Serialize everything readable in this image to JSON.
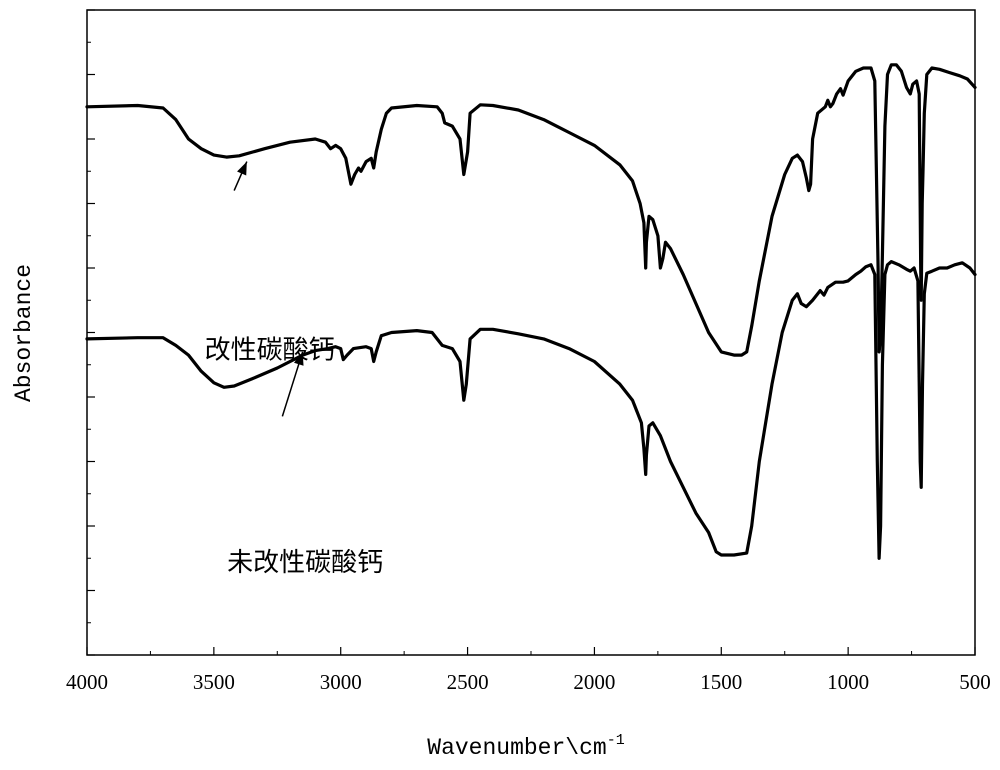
{
  "chart_data": {
    "type": "line",
    "xlabel": "Wavenumber\\cm",
    "xlabel_superscript": "-1",
    "ylabel": "Absorbance",
    "xlim": [
      4000,
      500
    ],
    "x_reversed": true,
    "x_ticks": [
      4000,
      3500,
      3000,
      2500,
      2000,
      1500,
      1000,
      500
    ],
    "y_tick_labels_shown": false,
    "ylim": [
      0,
      1
    ],
    "grid": false,
    "legend": "none",
    "line_color": "#000000",
    "series": [
      {
        "label": "改性碳酸钙",
        "points": [
          [
            4000,
            0.85
          ],
          [
            3800,
            0.852
          ],
          [
            3700,
            0.848
          ],
          [
            3650,
            0.83
          ],
          [
            3600,
            0.8
          ],
          [
            3550,
            0.785
          ],
          [
            3500,
            0.775
          ],
          [
            3450,
            0.772
          ],
          [
            3400,
            0.774
          ],
          [
            3300,
            0.785
          ],
          [
            3200,
            0.795
          ],
          [
            3100,
            0.8
          ],
          [
            3060,
            0.795
          ],
          [
            3040,
            0.785
          ],
          [
            3020,
            0.79
          ],
          [
            3000,
            0.785
          ],
          [
            2980,
            0.77
          ],
          [
            2960,
            0.73
          ],
          [
            2945,
            0.745
          ],
          [
            2930,
            0.755
          ],
          [
            2920,
            0.75
          ],
          [
            2900,
            0.765
          ],
          [
            2880,
            0.77
          ],
          [
            2870,
            0.755
          ],
          [
            2860,
            0.78
          ],
          [
            2840,
            0.815
          ],
          [
            2820,
            0.84
          ],
          [
            2800,
            0.848
          ],
          [
            2700,
            0.852
          ],
          [
            2620,
            0.85
          ],
          [
            2600,
            0.84
          ],
          [
            2590,
            0.825
          ],
          [
            2560,
            0.82
          ],
          [
            2530,
            0.8
          ],
          [
            2515,
            0.745
          ],
          [
            2500,
            0.78
          ],
          [
            2490,
            0.84
          ],
          [
            2450,
            0.853
          ],
          [
            2400,
            0.852
          ],
          [
            2300,
            0.845
          ],
          [
            2200,
            0.83
          ],
          [
            2100,
            0.81
          ],
          [
            2000,
            0.79
          ],
          [
            1900,
            0.76
          ],
          [
            1850,
            0.735
          ],
          [
            1820,
            0.7
          ],
          [
            1805,
            0.67
          ],
          [
            1798,
            0.6
          ],
          [
            1795,
            0.64
          ],
          [
            1785,
            0.68
          ],
          [
            1770,
            0.675
          ],
          [
            1750,
            0.65
          ],
          [
            1740,
            0.6
          ],
          [
            1730,
            0.615
          ],
          [
            1720,
            0.64
          ],
          [
            1700,
            0.63
          ],
          [
            1650,
            0.59
          ],
          [
            1600,
            0.545
          ],
          [
            1550,
            0.5
          ],
          [
            1500,
            0.47
          ],
          [
            1450,
            0.465
          ],
          [
            1420,
            0.465
          ],
          [
            1400,
            0.47
          ],
          [
            1380,
            0.51
          ],
          [
            1350,
            0.58
          ],
          [
            1300,
            0.68
          ],
          [
            1250,
            0.745
          ],
          [
            1220,
            0.77
          ],
          [
            1200,
            0.775
          ],
          [
            1180,
            0.765
          ],
          [
            1165,
            0.74
          ],
          [
            1155,
            0.72
          ],
          [
            1148,
            0.73
          ],
          [
            1140,
            0.8
          ],
          [
            1120,
            0.84
          ],
          [
            1090,
            0.85
          ],
          [
            1080,
            0.86
          ],
          [
            1070,
            0.85
          ],
          [
            1060,
            0.855
          ],
          [
            1045,
            0.87
          ],
          [
            1030,
            0.878
          ],
          [
            1020,
            0.868
          ],
          [
            1000,
            0.89
          ],
          [
            970,
            0.905
          ],
          [
            940,
            0.91
          ],
          [
            910,
            0.91
          ],
          [
            895,
            0.89
          ],
          [
            882,
            0.6
          ],
          [
            878,
            0.47
          ],
          [
            872,
            0.49
          ],
          [
            865,
            0.62
          ],
          [
            855,
            0.82
          ],
          [
            845,
            0.9
          ],
          [
            830,
            0.915
          ],
          [
            810,
            0.915
          ],
          [
            790,
            0.905
          ],
          [
            770,
            0.88
          ],
          [
            755,
            0.87
          ],
          [
            745,
            0.885
          ],
          [
            730,
            0.89
          ],
          [
            720,
            0.87
          ],
          [
            714,
            0.6
          ],
          [
            712,
            0.55
          ],
          [
            708,
            0.7
          ],
          [
            705,
            0.75
          ],
          [
            700,
            0.84
          ],
          [
            690,
            0.9
          ],
          [
            670,
            0.91
          ],
          [
            640,
            0.908
          ],
          [
            600,
            0.903
          ],
          [
            560,
            0.898
          ],
          [
            530,
            0.893
          ],
          [
            500,
            0.88
          ]
        ]
      },
      {
        "label": "未改性碳酸钙",
        "points": [
          [
            4000,
            0.49
          ],
          [
            3800,
            0.492
          ],
          [
            3700,
            0.492
          ],
          [
            3650,
            0.48
          ],
          [
            3600,
            0.465
          ],
          [
            3550,
            0.44
          ],
          [
            3500,
            0.422
          ],
          [
            3460,
            0.415
          ],
          [
            3420,
            0.417
          ],
          [
            3350,
            0.428
          ],
          [
            3250,
            0.445
          ],
          [
            3150,
            0.465
          ],
          [
            3100,
            0.472
          ],
          [
            3050,
            0.475
          ],
          [
            3020,
            0.478
          ],
          [
            3000,
            0.475
          ],
          [
            2990,
            0.458
          ],
          [
            2975,
            0.465
          ],
          [
            2950,
            0.475
          ],
          [
            2900,
            0.478
          ],
          [
            2880,
            0.475
          ],
          [
            2870,
            0.455
          ],
          [
            2860,
            0.47
          ],
          [
            2840,
            0.495
          ],
          [
            2800,
            0.5
          ],
          [
            2700,
            0.503
          ],
          [
            2640,
            0.5
          ],
          [
            2620,
            0.49
          ],
          [
            2600,
            0.48
          ],
          [
            2560,
            0.475
          ],
          [
            2530,
            0.455
          ],
          [
            2515,
            0.395
          ],
          [
            2505,
            0.42
          ],
          [
            2490,
            0.49
          ],
          [
            2450,
            0.505
          ],
          [
            2400,
            0.505
          ],
          [
            2300,
            0.498
          ],
          [
            2200,
            0.49
          ],
          [
            2100,
            0.475
          ],
          [
            2000,
            0.455
          ],
          [
            1900,
            0.42
          ],
          [
            1850,
            0.395
          ],
          [
            1815,
            0.36
          ],
          [
            1805,
            0.32
          ],
          [
            1798,
            0.28
          ],
          [
            1795,
            0.31
          ],
          [
            1785,
            0.355
          ],
          [
            1770,
            0.36
          ],
          [
            1740,
            0.34
          ],
          [
            1700,
            0.3
          ],
          [
            1650,
            0.26
          ],
          [
            1600,
            0.22
          ],
          [
            1550,
            0.19
          ],
          [
            1520,
            0.16
          ],
          [
            1500,
            0.155
          ],
          [
            1450,
            0.155
          ],
          [
            1400,
            0.158
          ],
          [
            1380,
            0.2
          ],
          [
            1350,
            0.3
          ],
          [
            1300,
            0.42
          ],
          [
            1260,
            0.5
          ],
          [
            1220,
            0.55
          ],
          [
            1200,
            0.56
          ],
          [
            1185,
            0.545
          ],
          [
            1165,
            0.54
          ],
          [
            1140,
            0.55
          ],
          [
            1110,
            0.565
          ],
          [
            1095,
            0.558
          ],
          [
            1080,
            0.57
          ],
          [
            1050,
            0.578
          ],
          [
            1020,
            0.578
          ],
          [
            1000,
            0.58
          ],
          [
            970,
            0.59
          ],
          [
            950,
            0.595
          ],
          [
            930,
            0.602
          ],
          [
            910,
            0.605
          ],
          [
            895,
            0.59
          ],
          [
            885,
            0.3
          ],
          [
            878,
            0.15
          ],
          [
            872,
            0.2
          ],
          [
            865,
            0.45
          ],
          [
            855,
            0.59
          ],
          [
            845,
            0.605
          ],
          [
            830,
            0.61
          ],
          [
            800,
            0.605
          ],
          [
            770,
            0.598
          ],
          [
            755,
            0.595
          ],
          [
            740,
            0.6
          ],
          [
            725,
            0.58
          ],
          [
            716,
            0.3
          ],
          [
            712,
            0.26
          ],
          [
            707,
            0.42
          ],
          [
            700,
            0.56
          ],
          [
            690,
            0.592
          ],
          [
            670,
            0.595
          ],
          [
            640,
            0.6
          ],
          [
            610,
            0.6
          ],
          [
            580,
            0.605
          ],
          [
            550,
            0.608
          ],
          [
            520,
            0.6
          ],
          [
            500,
            0.59
          ]
        ]
      }
    ],
    "annotations": [
      {
        "text": "改性碳酸钙",
        "text_at": [
          3280,
          0.46
        ],
        "arrow_from": [
          3420,
          0.72
        ],
        "arrow_to": [
          3370,
          0.765
        ]
      },
      {
        "text": "未改性碳酸钙",
        "text_at": [
          3140,
          0.13
        ],
        "arrow_from": [
          3230,
          0.37
        ],
        "arrow_to": [
          3150,
          0.47
        ]
      }
    ]
  }
}
